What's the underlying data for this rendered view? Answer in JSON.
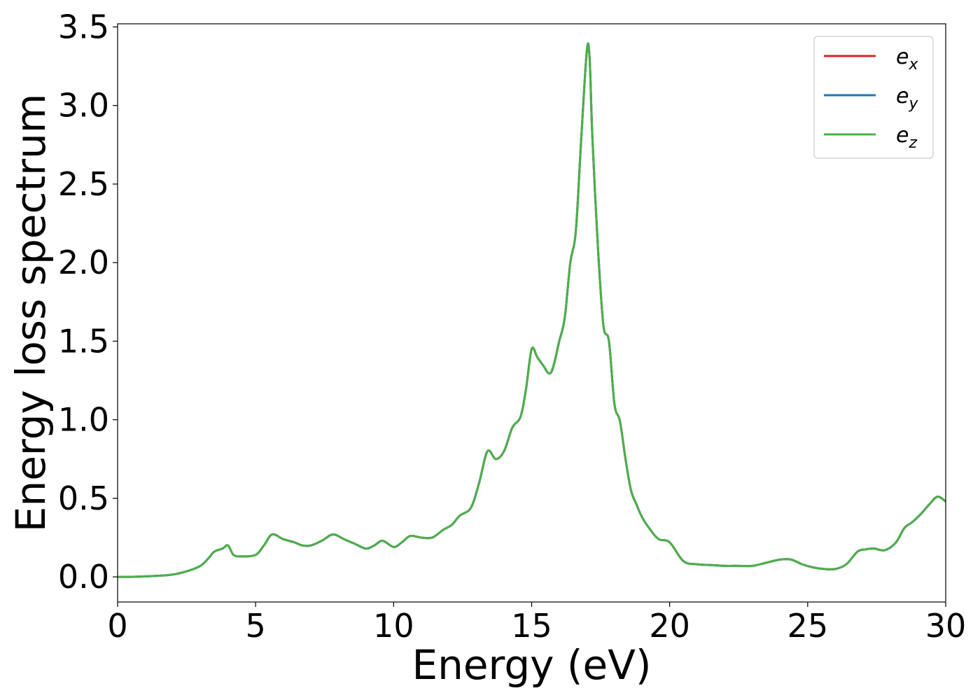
{
  "chart_data": {
    "type": "line",
    "title": "",
    "xlabel": "Energy (eV)",
    "ylabel": "Energy loss spectrum",
    "xlim": [
      0,
      30
    ],
    "ylim": [
      -0.16,
      3.52
    ],
    "xticks": [
      0,
      5,
      10,
      15,
      20,
      25,
      30
    ],
    "xtick_labels": [
      "0",
      "5",
      "10",
      "15",
      "20",
      "25",
      "30"
    ],
    "yticks": [
      0.0,
      0.5,
      1.0,
      1.5,
      2.0,
      2.5,
      3.0,
      3.5
    ],
    "ytick_labels": [
      "0.0",
      "0.5",
      "1.0",
      "1.5",
      "2.0",
      "2.5",
      "3.0",
      "3.5"
    ],
    "grid": false,
    "legend_position": "top-right",
    "series": [
      {
        "name": "e",
        "subscript": "x",
        "color": "#d62728"
      },
      {
        "name": "e",
        "subscript": "y",
        "color": "#1f77b4"
      },
      {
        "name": "e",
        "subscript": "z",
        "color": "#4daf4a"
      }
    ],
    "x": [
      0,
      0.5,
      1.0,
      1.5,
      2.0,
      2.5,
      3.0,
      3.3,
      3.5,
      3.8,
      4.0,
      4.2,
      4.5,
      5.0,
      5.3,
      5.6,
      6.0,
      6.4,
      6.7,
      7.0,
      7.4,
      7.8,
      8.2,
      8.6,
      9.0,
      9.3,
      9.6,
      10.0,
      10.3,
      10.6,
      11.0,
      11.4,
      11.8,
      12.1,
      12.4,
      12.8,
      13.1,
      13.4,
      13.7,
      14.0,
      14.3,
      14.6,
      14.8,
      15.0,
      15.2,
      15.4,
      15.7,
      16.0,
      16.2,
      16.4,
      16.6,
      16.8,
      17.0,
      17.1,
      17.2,
      17.4,
      17.6,
      17.8,
      18.0,
      18.2,
      18.4,
      18.6,
      18.8,
      19.0,
      19.3,
      19.6,
      20.0,
      20.5,
      21.0,
      21.5,
      22.0,
      22.5,
      23.0,
      23.5,
      24.0,
      24.4,
      24.8,
      25.2,
      25.6,
      26.0,
      26.4,
      26.8,
      27.1,
      27.4,
      27.8,
      28.2,
      28.5,
      28.8,
      29.1,
      29.4,
      29.7,
      30.0
    ],
    "values": [
      0.0,
      0.0,
      0.003,
      0.007,
      0.015,
      0.035,
      0.07,
      0.12,
      0.16,
      0.18,
      0.2,
      0.14,
      0.13,
      0.14,
      0.2,
      0.27,
      0.24,
      0.22,
      0.2,
      0.2,
      0.23,
      0.27,
      0.24,
      0.21,
      0.18,
      0.2,
      0.23,
      0.19,
      0.22,
      0.26,
      0.25,
      0.25,
      0.3,
      0.33,
      0.39,
      0.44,
      0.6,
      0.8,
      0.75,
      0.8,
      0.95,
      1.02,
      1.2,
      1.45,
      1.4,
      1.35,
      1.3,
      1.5,
      1.65,
      2.0,
      2.2,
      2.8,
      3.35,
      3.3,
      2.8,
      2.1,
      1.6,
      1.5,
      1.1,
      0.99,
      0.75,
      0.55,
      0.46,
      0.38,
      0.3,
      0.24,
      0.22,
      0.1,
      0.08,
      0.075,
      0.07,
      0.07,
      0.07,
      0.09,
      0.11,
      0.11,
      0.08,
      0.06,
      0.05,
      0.05,
      0.08,
      0.16,
      0.175,
      0.18,
      0.17,
      0.22,
      0.31,
      0.35,
      0.4,
      0.46,
      0.51,
      0.48
    ]
  }
}
